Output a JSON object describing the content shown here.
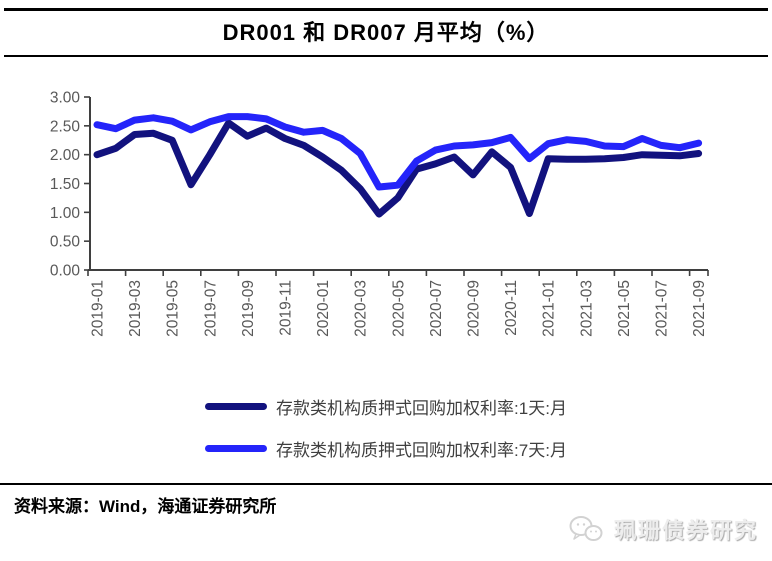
{
  "title": "DR001 和 DR007 月平均（%）",
  "chart_data": {
    "type": "line",
    "title": "DR001 和 DR007 月平均（%）",
    "xlabel": "",
    "ylabel": "",
    "ylim": [
      0,
      3
    ],
    "ytick_labels": [
      "3.00",
      "2.50",
      "2.00",
      "1.50",
      "1.00",
      "0.50",
      "0.00"
    ],
    "grid": false,
    "legend_position": "bottom",
    "x": [
      "2019-01",
      "2019-02",
      "2019-03",
      "2019-04",
      "2019-05",
      "2019-06",
      "2019-07",
      "2019-08",
      "2019-09",
      "2019-10",
      "2019-11",
      "2019-12",
      "2020-01",
      "2020-02",
      "2020-03",
      "2020-04",
      "2020-05",
      "2020-06",
      "2020-07",
      "2020-08",
      "2020-09",
      "2020-10",
      "2020-11",
      "2020-12",
      "2021-01",
      "2021-02",
      "2021-03",
      "2021-04",
      "2021-05",
      "2021-06",
      "2021-07",
      "2021-08",
      "2021-09"
    ],
    "x_tick_labels": [
      "2019-01",
      "2019-03",
      "2019-05",
      "2019-07",
      "2019-09",
      "2019-11",
      "2020-01",
      "2020-03",
      "2020-05",
      "2020-07",
      "2020-09",
      "2020-11",
      "2021-01",
      "2021-03",
      "2021-05",
      "2021-07",
      "2021-09"
    ],
    "series": [
      {
        "name": "存款类机构质押式回购加权利率:1天:月",
        "color": "#12127e",
        "values": [
          2.0,
          2.11,
          2.35,
          2.37,
          2.25,
          1.48,
          2.0,
          2.55,
          2.32,
          2.46,
          2.28,
          2.16,
          1.96,
          1.73,
          1.41,
          0.97,
          1.25,
          1.75,
          1.84,
          1.96,
          1.65,
          2.05,
          1.78,
          0.98,
          1.93,
          1.92,
          1.92,
          1.93,
          1.95,
          2.0,
          1.99,
          1.98,
          2.02
        ]
      },
      {
        "name": "存款类机构质押式回购加权利率:7天:月",
        "color": "#2424fa",
        "values": [
          2.52,
          2.45,
          2.6,
          2.64,
          2.58,
          2.43,
          2.57,
          2.66,
          2.66,
          2.62,
          2.48,
          2.39,
          2.42,
          2.28,
          2.02,
          1.44,
          1.47,
          1.89,
          2.08,
          2.15,
          2.17,
          2.21,
          2.3,
          1.93,
          2.19,
          2.26,
          2.23,
          2.15,
          2.14,
          2.28,
          2.16,
          2.12,
          2.2
        ]
      }
    ]
  },
  "footer": {
    "source_label": "资料来源：Wind，海通证券研究所"
  },
  "watermark": {
    "text": "珮珊债券研究",
    "icon": "wechat-icon"
  },
  "colors": {
    "dr001_line": "#12127e",
    "dr007_line": "#2424fa",
    "axis": "#3f3f3f",
    "tick_label": "#595959",
    "rule": "#000000"
  }
}
